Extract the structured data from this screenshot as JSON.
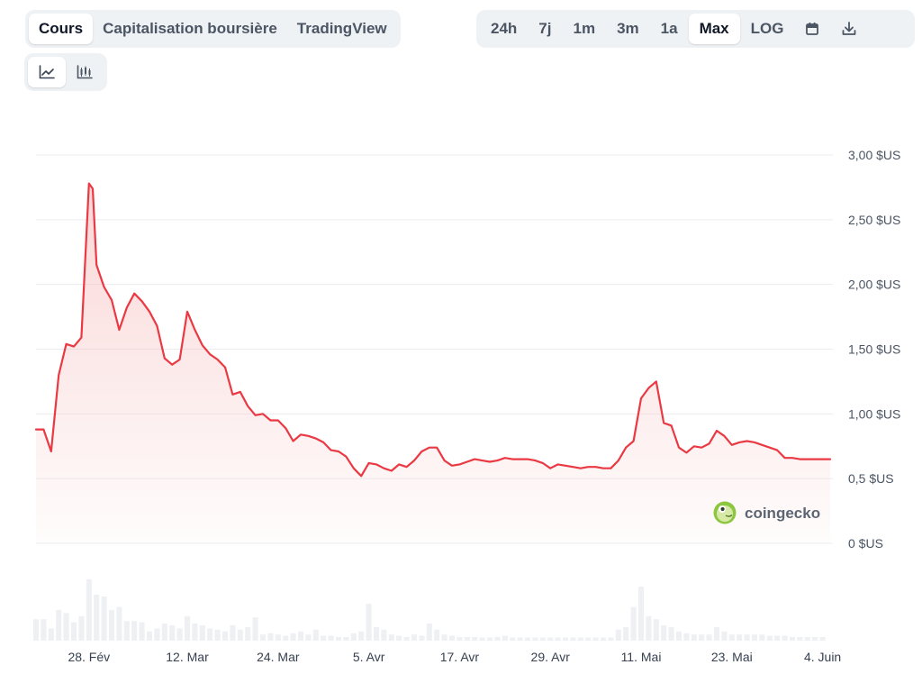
{
  "tabs": {
    "view": [
      {
        "label": "Cours",
        "active": true
      },
      {
        "label": "Capitalisation boursière",
        "active": false
      },
      {
        "label": "TradingView",
        "active": false
      }
    ],
    "range": [
      {
        "label": "24h",
        "active": false
      },
      {
        "label": "7j",
        "active": false
      },
      {
        "label": "1m",
        "active": false
      },
      {
        "label": "3m",
        "active": false
      },
      {
        "label": "1a",
        "active": false
      },
      {
        "label": "Max",
        "active": true
      },
      {
        "label": "LOG",
        "active": false
      }
    ],
    "icons": [
      "calendar-icon",
      "download-icon"
    ],
    "chart_types": [
      "line-chart-icon",
      "candlestick-chart-icon"
    ]
  },
  "watermark": {
    "text": "coingecko",
    "icon": "coingecko-logo-icon"
  },
  "colors": {
    "line": "#ea3943",
    "fill_top": "#f6b6b6",
    "grid": "#eaecef",
    "volume": "#eef0f3",
    "active_tab_bg": "#ffffff",
    "segment_bg": "#eff2f5"
  },
  "chart_data": {
    "type": "line",
    "y_axis": {
      "ticks": [
        {
          "value": 0,
          "label": "0 $US"
        },
        {
          "value": 0.5,
          "label": "0,5 $US"
        },
        {
          "value": 1.0,
          "label": "1,00 $US"
        },
        {
          "value": 1.5,
          "label": "1,50 $US"
        },
        {
          "value": 2.0,
          "label": "2,00 $US"
        },
        {
          "value": 2.5,
          "label": "2,50 $US"
        },
        {
          "value": 3.0,
          "label": "3,00 $US"
        }
      ],
      "range": [
        0,
        3.0
      ],
      "position": "right"
    },
    "x_axis": {
      "range": [
        "2024-02-21",
        "2024-06-05"
      ],
      "ticks": [
        {
          "date": "2024-02-28",
          "label": "28. Fév"
        },
        {
          "date": "2024-03-12",
          "label": "12. Mar"
        },
        {
          "date": "2024-03-24",
          "label": "24. Mar"
        },
        {
          "date": "2024-04-05",
          "label": "5. Avr"
        },
        {
          "date": "2024-04-17",
          "label": "17. Avr"
        },
        {
          "date": "2024-04-29",
          "label": "29. Avr"
        },
        {
          "date": "2024-05-11",
          "label": "11. Mai"
        },
        {
          "date": "2024-05-23",
          "label": "23. Mai"
        },
        {
          "date": "2024-06-04",
          "label": "4. Juin"
        }
      ]
    },
    "grid": true,
    "legend": "none",
    "price": [
      [
        "2024-02-21",
        0.88
      ],
      [
        "2024-02-22",
        0.88
      ],
      [
        "2024-02-23",
        0.71
      ],
      [
        "2024-02-24",
        1.3
      ],
      [
        "2024-02-25",
        1.54
      ],
      [
        "2024-02-26",
        1.52
      ],
      [
        "2024-02-27",
        1.59
      ],
      [
        "2024-02-28",
        2.78
      ],
      [
        "2024-02-28T12:00",
        2.74
      ],
      [
        "2024-02-29",
        2.15
      ],
      [
        "2024-03-01",
        1.98
      ],
      [
        "2024-03-02",
        1.88
      ],
      [
        "2024-03-03",
        1.65
      ],
      [
        "2024-03-04",
        1.82
      ],
      [
        "2024-03-05",
        1.93
      ],
      [
        "2024-03-06",
        1.87
      ],
      [
        "2024-03-07",
        1.79
      ],
      [
        "2024-03-08",
        1.68
      ],
      [
        "2024-03-09",
        1.43
      ],
      [
        "2024-03-10",
        1.38
      ],
      [
        "2024-03-11",
        1.42
      ],
      [
        "2024-03-12",
        1.79
      ],
      [
        "2024-03-13",
        1.65
      ],
      [
        "2024-03-14",
        1.53
      ],
      [
        "2024-03-15",
        1.46
      ],
      [
        "2024-03-16",
        1.42
      ],
      [
        "2024-03-17",
        1.36
      ],
      [
        "2024-03-18",
        1.15
      ],
      [
        "2024-03-19",
        1.17
      ],
      [
        "2024-03-20",
        1.06
      ],
      [
        "2024-03-21",
        0.99
      ],
      [
        "2024-03-22",
        1.0
      ],
      [
        "2024-03-23",
        0.95
      ],
      [
        "2024-03-24",
        0.95
      ],
      [
        "2024-03-25",
        0.89
      ],
      [
        "2024-03-26",
        0.79
      ],
      [
        "2024-03-27",
        0.84
      ],
      [
        "2024-03-28",
        0.83
      ],
      [
        "2024-03-29",
        0.81
      ],
      [
        "2024-03-30",
        0.78
      ],
      [
        "2024-03-31",
        0.72
      ],
      [
        "2024-04-01",
        0.71
      ],
      [
        "2024-04-02",
        0.67
      ],
      [
        "2024-04-03",
        0.58
      ],
      [
        "2024-04-04",
        0.52
      ],
      [
        "2024-04-05",
        0.62
      ],
      [
        "2024-04-06",
        0.61
      ],
      [
        "2024-04-07",
        0.58
      ],
      [
        "2024-04-08",
        0.56
      ],
      [
        "2024-04-09",
        0.61
      ],
      [
        "2024-04-10",
        0.59
      ],
      [
        "2024-04-11",
        0.64
      ],
      [
        "2024-04-12",
        0.71
      ],
      [
        "2024-04-13",
        0.74
      ],
      [
        "2024-04-14",
        0.74
      ],
      [
        "2024-04-15",
        0.64
      ],
      [
        "2024-04-16",
        0.6
      ],
      [
        "2024-04-17",
        0.61
      ],
      [
        "2024-04-18",
        0.63
      ],
      [
        "2024-04-19",
        0.65
      ],
      [
        "2024-04-20",
        0.64
      ],
      [
        "2024-04-21",
        0.63
      ],
      [
        "2024-04-22",
        0.64
      ],
      [
        "2024-04-23",
        0.66
      ],
      [
        "2024-04-24",
        0.65
      ],
      [
        "2024-04-25",
        0.65
      ],
      [
        "2024-04-26",
        0.65
      ],
      [
        "2024-04-27",
        0.64
      ],
      [
        "2024-04-28",
        0.62
      ],
      [
        "2024-04-29",
        0.58
      ],
      [
        "2024-04-30",
        0.61
      ],
      [
        "2024-05-01",
        0.6
      ],
      [
        "2024-05-02",
        0.59
      ],
      [
        "2024-05-03",
        0.58
      ],
      [
        "2024-05-04",
        0.59
      ],
      [
        "2024-05-05",
        0.59
      ],
      [
        "2024-05-06",
        0.58
      ],
      [
        "2024-05-07",
        0.58
      ],
      [
        "2024-05-08",
        0.64
      ],
      [
        "2024-05-09",
        0.74
      ],
      [
        "2024-05-10",
        0.79
      ],
      [
        "2024-05-11",
        1.12
      ],
      [
        "2024-05-12",
        1.2
      ],
      [
        "2024-05-13",
        1.25
      ],
      [
        "2024-05-14",
        0.93
      ],
      [
        "2024-05-15",
        0.91
      ],
      [
        "2024-05-16",
        0.74
      ],
      [
        "2024-05-17",
        0.7
      ],
      [
        "2024-05-18",
        0.75
      ],
      [
        "2024-05-19",
        0.74
      ],
      [
        "2024-05-20",
        0.77
      ],
      [
        "2024-05-21",
        0.87
      ],
      [
        "2024-05-22",
        0.83
      ],
      [
        "2024-05-23",
        0.76
      ],
      [
        "2024-05-24",
        0.78
      ],
      [
        "2024-05-25",
        0.79
      ],
      [
        "2024-05-26",
        0.78
      ],
      [
        "2024-05-27",
        0.76
      ],
      [
        "2024-05-28",
        0.74
      ],
      [
        "2024-05-29",
        0.72
      ],
      [
        "2024-05-30",
        0.66
      ],
      [
        "2024-05-31",
        0.66
      ],
      [
        "2024-06-01",
        0.65
      ],
      [
        "2024-06-02",
        0.65
      ],
      [
        "2024-06-03",
        0.65
      ],
      [
        "2024-06-04",
        0.65
      ],
      [
        "2024-06-05",
        0.65
      ]
    ],
    "volume_relative": [
      [
        "2024-02-21",
        0.35
      ],
      [
        "2024-02-22",
        0.35
      ],
      [
        "2024-02-23",
        0.2
      ],
      [
        "2024-02-24",
        0.5
      ],
      [
        "2024-02-25",
        0.45
      ],
      [
        "2024-02-26",
        0.3
      ],
      [
        "2024-02-27",
        0.4
      ],
      [
        "2024-02-28",
        1.0
      ],
      [
        "2024-02-29",
        0.75
      ],
      [
        "2024-03-01",
        0.72
      ],
      [
        "2024-03-02",
        0.5
      ],
      [
        "2024-03-03",
        0.55
      ],
      [
        "2024-03-04",
        0.32
      ],
      [
        "2024-03-05",
        0.32
      ],
      [
        "2024-03-06",
        0.3
      ],
      [
        "2024-03-07",
        0.15
      ],
      [
        "2024-03-08",
        0.2
      ],
      [
        "2024-03-09",
        0.28
      ],
      [
        "2024-03-10",
        0.25
      ],
      [
        "2024-03-11",
        0.2
      ],
      [
        "2024-03-12",
        0.4
      ],
      [
        "2024-03-13",
        0.28
      ],
      [
        "2024-03-14",
        0.25
      ],
      [
        "2024-03-15",
        0.2
      ],
      [
        "2024-03-16",
        0.18
      ],
      [
        "2024-03-17",
        0.15
      ],
      [
        "2024-03-18",
        0.25
      ],
      [
        "2024-03-19",
        0.18
      ],
      [
        "2024-03-20",
        0.22
      ],
      [
        "2024-03-21",
        0.38
      ],
      [
        "2024-03-22",
        0.1
      ],
      [
        "2024-03-23",
        0.12
      ],
      [
        "2024-03-24",
        0.1
      ],
      [
        "2024-03-25",
        0.08
      ],
      [
        "2024-03-26",
        0.12
      ],
      [
        "2024-03-27",
        0.15
      ],
      [
        "2024-03-28",
        0.1
      ],
      [
        "2024-03-29",
        0.18
      ],
      [
        "2024-03-30",
        0.08
      ],
      [
        "2024-03-31",
        0.08
      ],
      [
        "2024-04-01",
        0.06
      ],
      [
        "2024-04-02",
        0.06
      ],
      [
        "2024-04-03",
        0.12
      ],
      [
        "2024-04-04",
        0.15
      ],
      [
        "2024-04-05",
        0.6
      ],
      [
        "2024-04-06",
        0.22
      ],
      [
        "2024-04-07",
        0.18
      ],
      [
        "2024-04-08",
        0.1
      ],
      [
        "2024-04-09",
        0.08
      ],
      [
        "2024-04-10",
        0.06
      ],
      [
        "2024-04-11",
        0.1
      ],
      [
        "2024-04-12",
        0.08
      ],
      [
        "2024-04-13",
        0.28
      ],
      [
        "2024-04-14",
        0.18
      ],
      [
        "2024-04-15",
        0.1
      ],
      [
        "2024-04-16",
        0.08
      ],
      [
        "2024-04-17",
        0.06
      ],
      [
        "2024-04-18",
        0.06
      ],
      [
        "2024-04-19",
        0.06
      ],
      [
        "2024-04-20",
        0.05
      ],
      [
        "2024-04-21",
        0.05
      ],
      [
        "2024-04-22",
        0.06
      ],
      [
        "2024-04-23",
        0.08
      ],
      [
        "2024-04-24",
        0.05
      ],
      [
        "2024-04-25",
        0.05
      ],
      [
        "2024-04-26",
        0.05
      ],
      [
        "2024-04-27",
        0.05
      ],
      [
        "2024-04-28",
        0.05
      ],
      [
        "2024-04-29",
        0.05
      ],
      [
        "2024-04-30",
        0.05
      ],
      [
        "2024-05-01",
        0.05
      ],
      [
        "2024-05-02",
        0.05
      ],
      [
        "2024-05-03",
        0.05
      ],
      [
        "2024-05-04",
        0.05
      ],
      [
        "2024-05-05",
        0.05
      ],
      [
        "2024-05-06",
        0.05
      ],
      [
        "2024-05-07",
        0.05
      ],
      [
        "2024-05-08",
        0.18
      ],
      [
        "2024-05-09",
        0.22
      ],
      [
        "2024-05-10",
        0.55
      ],
      [
        "2024-05-11",
        0.88
      ],
      [
        "2024-05-12",
        0.4
      ],
      [
        "2024-05-13",
        0.35
      ],
      [
        "2024-05-14",
        0.25
      ],
      [
        "2024-05-15",
        0.22
      ],
      [
        "2024-05-16",
        0.15
      ],
      [
        "2024-05-17",
        0.12
      ],
      [
        "2024-05-18",
        0.1
      ],
      [
        "2024-05-19",
        0.1
      ],
      [
        "2024-05-20",
        0.1
      ],
      [
        "2024-05-21",
        0.22
      ],
      [
        "2024-05-22",
        0.15
      ],
      [
        "2024-05-23",
        0.1
      ],
      [
        "2024-05-24",
        0.1
      ],
      [
        "2024-05-25",
        0.1
      ],
      [
        "2024-05-26",
        0.1
      ],
      [
        "2024-05-27",
        0.1
      ],
      [
        "2024-05-28",
        0.08
      ],
      [
        "2024-05-29",
        0.08
      ],
      [
        "2024-05-30",
        0.08
      ],
      [
        "2024-05-31",
        0.06
      ],
      [
        "2024-06-01",
        0.06
      ],
      [
        "2024-06-02",
        0.06
      ],
      [
        "2024-06-03",
        0.06
      ],
      [
        "2024-06-04",
        0.06
      ]
    ]
  }
}
